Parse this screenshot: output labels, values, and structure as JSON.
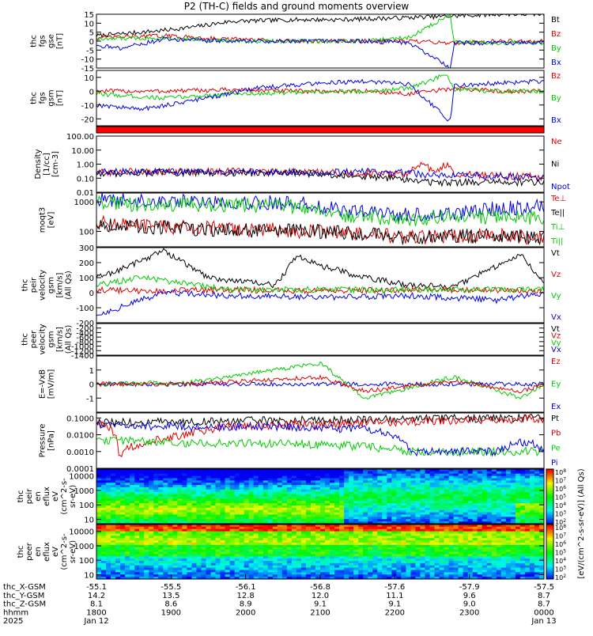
{
  "title": "P2 (TH-C) fields and ground moments overview",
  "chart_data": [
    {
      "type": "line",
      "ylabel_lines": [
        "thc",
        "fgs",
        "gse",
        "[nT]"
      ],
      "ylim": [
        -15,
        15
      ],
      "yticks": [
        "15",
        "10",
        "5",
        "0",
        "-5",
        "-10",
        "-15"
      ],
      "tick_values": [
        15,
        10,
        5,
        0,
        -5,
        -10,
        -15
      ],
      "legend": [
        {
          "name": "Bt",
          "color": "#000000"
        },
        {
          "name": "Bz",
          "color": "#e00000"
        },
        {
          "name": "By",
          "color": "#00cc00"
        },
        {
          "name": "Bx",
          "color": "#0000e0"
        }
      ],
      "series": [
        {
          "name": "Bt",
          "color": "#000000",
          "x": [
            0,
            0.15,
            0.22,
            0.3,
            0.45,
            0.55,
            0.68,
            0.8,
            0.9,
            1.0
          ],
          "values": [
            3,
            6,
            8,
            11,
            12,
            12,
            13,
            14,
            15,
            15
          ]
        },
        {
          "name": "Bz",
          "color": "#e00000",
          "x": [
            0,
            0.15,
            0.3,
            0.45,
            0.55,
            0.68,
            0.8,
            0.9,
            1.0
          ],
          "values": [
            2,
            3,
            1,
            0,
            0,
            0,
            -1,
            0,
            0
          ]
        },
        {
          "name": "By",
          "color": "#00cc00",
          "x": [
            0,
            0.15,
            0.3,
            0.45,
            0.6,
            0.7,
            0.79,
            0.8,
            0.9,
            1.0
          ],
          "values": [
            1,
            2,
            0,
            0,
            0,
            2,
            15,
            0,
            -1,
            -1
          ]
        },
        {
          "name": "Bx",
          "color": "#0000e0",
          "x": [
            0,
            0.05,
            0.15,
            0.3,
            0.45,
            0.6,
            0.7,
            0.79,
            0.8,
            0.9,
            1.0
          ],
          "values": [
            -2,
            -4,
            1,
            0,
            0,
            0,
            -1,
            -15,
            -1,
            -1,
            -1
          ]
        }
      ]
    },
    {
      "type": "line",
      "ylabel_lines": [
        "thc",
        "fgs",
        "gsm",
        "[nT]"
      ],
      "ylim": [
        -25,
        15
      ],
      "yticks": [
        "10",
        "0",
        "-10",
        "-20"
      ],
      "tick_values": [
        10,
        0,
        -10,
        -20
      ],
      "legend": [
        {
          "name": "Bz",
          "color": "#e00000"
        },
        {
          "name": "By",
          "color": "#00cc00"
        },
        {
          "name": "Bx",
          "color": "#0000e0"
        }
      ],
      "series": [
        {
          "name": "Bz",
          "color": "#e00000",
          "x": [
            0,
            0.15,
            0.3,
            0.45,
            0.6,
            0.7,
            0.8,
            0.9,
            1.0
          ],
          "values": [
            0,
            0,
            1,
            0,
            0,
            -2,
            2,
            0,
            0
          ]
        },
        {
          "name": "By",
          "color": "#00cc00",
          "x": [
            0,
            0.15,
            0.3,
            0.45,
            0.6,
            0.7,
            0.78,
            0.8,
            0.9,
            1.0
          ],
          "values": [
            -2,
            -5,
            -2,
            -1,
            0,
            2,
            12,
            1,
            0,
            0
          ]
        },
        {
          "name": "Bx",
          "color": "#0000e0",
          "x": [
            0,
            0.1,
            0.25,
            0.35,
            0.5,
            0.6,
            0.7,
            0.79,
            0.8,
            0.9,
            1.0
          ],
          "values": [
            -10,
            -13,
            -5,
            2,
            6,
            7,
            5,
            -22,
            4,
            6,
            7
          ]
        }
      ]
    },
    {
      "type": "line",
      "ylabel_lines": [
        "Density",
        "[1/cc]",
        "[cm-3]"
      ],
      "scale": "log",
      "ylim": [
        0.01,
        100
      ],
      "yticks": [
        "100.00",
        "10.00",
        "1.00",
        "0.10",
        "0.01"
      ],
      "tick_values": [
        100,
        10,
        1,
        0.1,
        0.01
      ],
      "legend": [
        {
          "name": "Ne",
          "color": "#e00000"
        },
        {
          "name": "Ni",
          "color": "#000000"
        },
        {
          "name": "Npot",
          "color": "#0000e0"
        }
      ],
      "series": [
        {
          "name": "Ne",
          "color": "#e00000",
          "x": [
            0,
            0.1,
            0.3,
            0.5,
            0.65,
            0.7,
            0.72,
            0.76,
            0.78,
            0.8,
            0.9,
            1.0
          ],
          "values": [
            0.25,
            0.3,
            0.3,
            0.25,
            0.2,
            0.2,
            1.0,
            0.2,
            0.9,
            0.2,
            0.15,
            0.12
          ]
        },
        {
          "name": "Ni",
          "color": "#000000",
          "x": [
            0,
            0.1,
            0.3,
            0.5,
            0.65,
            0.75,
            0.85,
            1.0
          ],
          "values": [
            0.2,
            0.25,
            0.25,
            0.2,
            0.1,
            0.05,
            0.05,
            0.05
          ]
        },
        {
          "name": "Npot",
          "color": "#0000e0",
          "x": [
            0,
            0.1,
            0.3,
            0.5,
            0.65,
            0.75,
            0.85,
            1.0
          ],
          "values": [
            0.25,
            0.3,
            0.3,
            0.25,
            0.3,
            0.15,
            0.15,
            0.1
          ]
        }
      ]
    },
    {
      "type": "line",
      "ylabel_lines": [
        "moqt3",
        "[eV]"
      ],
      "scale": "log",
      "ylim": [
        30,
        2000
      ],
      "yticks": [
        "1000",
        "100"
      ],
      "tick_values": [
        1000,
        100
      ],
      "legend": [
        {
          "name": "Te⊥",
          "color": "#e00000"
        },
        {
          "name": "Te||",
          "color": "#000000"
        },
        {
          "name": "Ti⊥",
          "color": "#00cc00"
        },
        {
          "name": "Ti||",
          "color": "#00cc00"
        }
      ],
      "series": [
        {
          "name": "Te⊥",
          "color": "#e00000",
          "x": [
            0,
            0.1,
            0.3,
            0.5,
            0.6,
            0.7,
            0.8,
            0.9,
            1.0
          ],
          "values": [
            200,
            150,
            120,
            100,
            80,
            60,
            70,
            70,
            60
          ]
        },
        {
          "name": "Te||",
          "color": "#000000",
          "x": [
            0,
            0.1,
            0.3,
            0.5,
            0.6,
            0.7,
            0.8,
            0.9,
            1.0
          ],
          "values": [
            180,
            140,
            110,
            100,
            80,
            60,
            70,
            70,
            60
          ]
        },
        {
          "name": "Ti⊥",
          "color": "#0000e0",
          "x": [
            0,
            0.1,
            0.3,
            0.45,
            0.55,
            0.7,
            0.8,
            0.9,
            1.0
          ],
          "values": [
            1200,
            1100,
            1000,
            900,
            500,
            350,
            400,
            600,
            700
          ]
        },
        {
          "name": "Ti||",
          "color": "#00cc00",
          "x": [
            0,
            0.1,
            0.3,
            0.45,
            0.55,
            0.7,
            0.8,
            0.9,
            1.0
          ],
          "values": [
            900,
            800,
            800,
            700,
            350,
            250,
            300,
            300,
            300
          ]
        }
      ]
    },
    {
      "type": "line",
      "ylabel_lines": [
        "thc",
        "peir",
        "velocity",
        "gsm",
        "[km/s]",
        "(All Qs)"
      ],
      "ylim": [
        -200,
        300
      ],
      "yticks": [
        "300",
        "200",
        "100",
        "0",
        "-100",
        "-200"
      ],
      "tick_values": [
        300,
        200,
        100,
        0,
        -100,
        -200
      ],
      "legend": [
        {
          "name": "Vt",
          "color": "#000000"
        },
        {
          "name": "Vz",
          "color": "#e00000"
        },
        {
          "name": "Vy",
          "color": "#00cc00"
        },
        {
          "name": "Vx",
          "color": "#0000e0"
        }
      ],
      "series": [
        {
          "name": "Vt",
          "color": "#000000",
          "x": [
            0,
            0.05,
            0.15,
            0.25,
            0.4,
            0.45,
            0.5,
            0.6,
            0.7,
            0.8,
            0.95,
            1.0
          ],
          "values": [
            100,
            150,
            280,
            100,
            50,
            250,
            180,
            100,
            50,
            40,
            260,
            50
          ]
        },
        {
          "name": "Vz",
          "color": "#e00000",
          "x": [
            0,
            0.1,
            0.3,
            0.5,
            0.7,
            0.9,
            1.0
          ],
          "values": [
            20,
            10,
            20,
            10,
            20,
            20,
            10
          ]
        },
        {
          "name": "Vy",
          "color": "#00cc00",
          "x": [
            0,
            0.1,
            0.3,
            0.5,
            0.7,
            0.9,
            1.0
          ],
          "values": [
            50,
            100,
            20,
            20,
            20,
            20,
            20
          ]
        },
        {
          "name": "Vx",
          "color": "#0000e0",
          "x": [
            0,
            0.05,
            0.15,
            0.3,
            0.5,
            0.7,
            0.9,
            1.0
          ],
          "values": [
            -150,
            -100,
            0,
            -20,
            -30,
            -20,
            -50,
            0
          ]
        }
      ]
    },
    {
      "type": "line",
      "ylabel_lines": [
        "thc",
        "peer",
        "velocity",
        "gsm",
        "[km/s]",
        "(All Qs)"
      ],
      "ylim": [
        -1400,
        0
      ],
      "yticks": [
        "-200",
        "-400",
        "-600",
        "-800",
        "-1000",
        "-1200",
        "-1400"
      ],
      "tick_values": [
        -200,
        -400,
        -600,
        -800,
        -1000,
        -1200,
        -1400
      ],
      "legend": [
        {
          "name": "Vt",
          "color": "#000000"
        },
        {
          "name": "Vz",
          "color": "#e00000"
        },
        {
          "name": "Vy",
          "color": "#00cc00"
        },
        {
          "name": "Vx",
          "color": "#0000e0"
        }
      ],
      "series": []
    },
    {
      "type": "line",
      "ylabel_lines": [
        "E=-VxB",
        "[mV/m]"
      ],
      "ylim": [
        -2,
        2
      ],
      "yticks": [
        "1",
        "0",
        "-1"
      ],
      "tick_values": [
        1,
        0,
        -1
      ],
      "legend": [
        {
          "name": "Ez",
          "color": "#e00000"
        },
        {
          "name": "Ey",
          "color": "#00cc00"
        },
        {
          "name": "Ex",
          "color": "#0000e0"
        }
      ],
      "series": [
        {
          "name": "Ex",
          "color": "#0000e0",
          "x": [
            0,
            0.2,
            0.5,
            0.8,
            1.0
          ],
          "values": [
            0,
            0,
            0,
            0,
            0
          ]
        },
        {
          "name": "Ey",
          "color": "#00cc00",
          "x": [
            0,
            0.2,
            0.5,
            0.6,
            0.8,
            0.95,
            1.0
          ],
          "values": [
            0,
            0.1,
            1.5,
            -1,
            0.5,
            -1,
            0
          ]
        },
        {
          "name": "Ez",
          "color": "#e00000",
          "x": [
            0,
            0.2,
            0.5,
            0.6,
            0.8,
            0.95,
            1.0
          ],
          "values": [
            0,
            0,
            0.5,
            -0.5,
            0.2,
            -0.5,
            0
          ]
        }
      ]
    },
    {
      "type": "line",
      "ylabel_lines": [
        "Pressure",
        "[nPa]"
      ],
      "scale": "log",
      "ylim": [
        0.0001,
        0.2
      ],
      "yticks": [
        "0.1000",
        "0.0100",
        "0.0010",
        "0.0001"
      ],
      "tick_values": [
        0.1,
        0.01,
        0.001,
        0.0001
      ],
      "legend": [
        {
          "name": "Pt",
          "color": "#000000"
        },
        {
          "name": "Pb",
          "color": "#e00000"
        },
        {
          "name": "Pe",
          "color": "#00cc00"
        },
        {
          "name": "Pi",
          "color": "#0000e0"
        }
      ],
      "series": [
        {
          "name": "Pt",
          "color": "#000000",
          "x": [
            0,
            0.2,
            0.4,
            0.6,
            0.8,
            1.0
          ],
          "values": [
            0.05,
            0.06,
            0.07,
            0.08,
            0.09,
            0.1
          ]
        },
        {
          "name": "Pb",
          "color": "#e00000",
          "x": [
            0,
            0.05,
            0.1,
            0.2,
            0.3,
            0.5,
            0.7,
            0.9,
            1.0
          ],
          "values": [
            0.05,
            0.0005,
            0.003,
            0.01,
            0.03,
            0.04,
            0.06,
            0.08,
            0.09
          ]
        },
        {
          "name": "Pe",
          "color": "#00cc00",
          "x": [
            0,
            0.2,
            0.4,
            0.6,
            0.7,
            0.8,
            0.9,
            1.0
          ],
          "values": [
            0.005,
            0.003,
            0.003,
            0.002,
            0.001,
            0.001,
            0.001,
            0.001
          ]
        },
        {
          "name": "Pi",
          "color": "#0000e0",
          "x": [
            0,
            0.2,
            0.4,
            0.6,
            0.7,
            0.8,
            0.9,
            0.96,
            1.0
          ],
          "values": [
            0.04,
            0.03,
            0.03,
            0.02,
            0.001,
            0.001,
            0.001,
            0.004,
            0.001
          ]
        }
      ]
    },
    {
      "type": "heatmap",
      "ylabel_lines": [
        "thc",
        "peir",
        "en",
        "eflux",
        "eV",
        "(cm^2-s-",
        "sr-eV)"
      ],
      "yticks": [
        "10000",
        "1000",
        "100",
        "10"
      ],
      "tick_values": [
        10000,
        1000,
        100,
        10
      ]
    },
    {
      "type": "heatmap",
      "ylabel_lines": [
        "thc",
        "peer",
        "en",
        "eflux",
        "eV",
        "(cm^2-s-",
        "sr-eV)"
      ],
      "yticks": [
        "10000",
        "1000",
        "100",
        "10"
      ],
      "tick_values": [
        10000,
        1000,
        100,
        10
      ]
    }
  ],
  "colorbar": {
    "label": "[eV/(cm^2-s-sr-eV)] (All Qs)",
    "top": {
      "ticks": [
        "10^8",
        "10^7",
        "10^6",
        "10^5",
        "10^4",
        "10^3",
        "10^2"
      ]
    },
    "bottom": {
      "ticks": [
        "10^8",
        "10^7",
        "10^6",
        "10^5",
        "10^4",
        "10^3",
        "10^2"
      ]
    }
  },
  "x_axis": {
    "rows": [
      {
        "label": "thc_X-GSM",
        "values": [
          "-55.1",
          "-55.5",
          "-56.1",
          "-56.8",
          "-57.6",
          "-57.9",
          "-57.5"
        ]
      },
      {
        "label": "thc_Y-GSM",
        "values": [
          "14.2",
          "13.5",
          "12.8",
          "12.0",
          "11.1",
          "9.6",
          "8.7"
        ]
      },
      {
        "label": "thc_Z-GSM",
        "values": [
          "8.1",
          "8.6",
          "8.9",
          "9.1",
          "9.1",
          "9.0",
          "8.7"
        ]
      },
      {
        "label": "hhmm",
        "values": [
          "1800",
          "1900",
          "2000",
          "2100",
          "2200",
          "2300",
          "0000"
        ]
      },
      {
        "label": "2025",
        "values": [
          "Jan 12",
          "",
          "",
          "",
          "",
          "",
          "Jan 13"
        ]
      }
    ]
  }
}
